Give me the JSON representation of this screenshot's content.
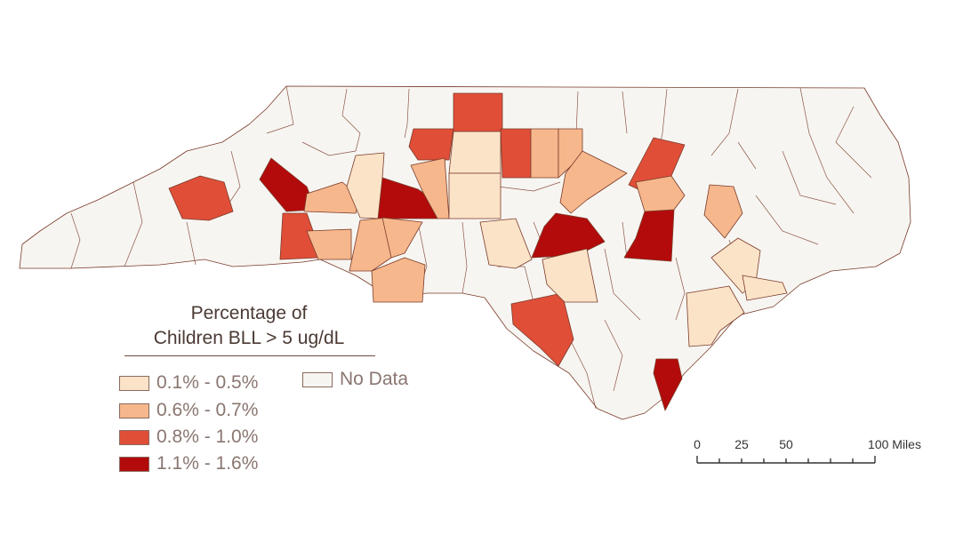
{
  "legend": {
    "title_line1": "Percentage of",
    "title_line2": "Children BLL > 5 ug/dL",
    "classes": [
      {
        "label": "0.1% - 0.5%",
        "color": "#fbe3c8"
      },
      {
        "label": "0.6% - 0.7%",
        "color": "#f6b78c"
      },
      {
        "label": "0.8% - 1.0%",
        "color": "#e04e38"
      },
      {
        "label": "1.1% - 1.6%",
        "color": "#b30b0b"
      }
    ],
    "no_data": {
      "label": "No Data",
      "color": "#f7f5f1"
    }
  },
  "scale_bar": {
    "labels": [
      "0",
      "25",
      "50",
      "100 Miles"
    ]
  },
  "colors": {
    "county_border": "#7a3b2a",
    "no_data_fill": "#f7f5f1",
    "class_1": "#fbe3c8",
    "class_2": "#f6b78c",
    "class_3": "#e04e38",
    "class_4": "#b30b0b"
  }
}
